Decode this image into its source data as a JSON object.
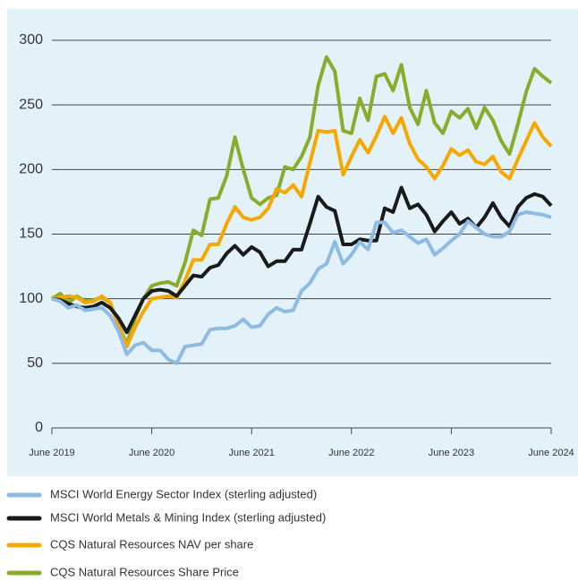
{
  "chart_data": {
    "type": "line",
    "categories": [
      "June 2019",
      null,
      null,
      null,
      null,
      null,
      null,
      null,
      null,
      null,
      null,
      null,
      "June 2020",
      null,
      null,
      null,
      null,
      null,
      null,
      null,
      null,
      null,
      null,
      null,
      "June 2021",
      null,
      null,
      null,
      null,
      null,
      null,
      null,
      null,
      null,
      null,
      null,
      "June 2022",
      null,
      null,
      null,
      null,
      null,
      null,
      null,
      null,
      null,
      null,
      null,
      "June 2023",
      null,
      null,
      null,
      null,
      null,
      null,
      null,
      null,
      null,
      null,
      null,
      "June 2024"
    ],
    "series": [
      {
        "name": "MSCI World Energy Sector Index (sterling adjusted)",
        "color": "#8dbbe3",
        "values": [
          100,
          98,
          93,
          95,
          91,
          92,
          93,
          87,
          75,
          57,
          64,
          66,
          60,
          60,
          53,
          50,
          63,
          64,
          65,
          76,
          77,
          77,
          79,
          84,
          78,
          79,
          88,
          93,
          90,
          91,
          106,
          112,
          123,
          127,
          144,
          127,
          134,
          144,
          138,
          159,
          159,
          151,
          153,
          148,
          143,
          146,
          134,
          139,
          145,
          150,
          160,
          155,
          150,
          148,
          148,
          152,
          165,
          167,
          166,
          165,
          163
        ]
      },
      {
        "name": "MSCI World Metals & Mining Index (sterling adjusted)",
        "color": "#1a1a1a",
        "values": [
          100,
          99,
          96,
          94,
          93,
          94,
          97,
          93,
          85,
          74,
          87,
          100,
          106,
          107,
          106,
          102,
          110,
          118,
          117,
          124,
          126,
          135,
          141,
          134,
          140,
          136,
          125,
          129,
          129,
          138,
          138,
          158,
          179,
          171,
          168,
          142,
          142,
          146,
          145,
          145,
          170,
          167,
          186,
          170,
          173,
          165,
          152,
          160,
          167,
          158,
          162,
          155,
          163,
          174,
          163,
          156,
          171,
          178,
          181,
          179,
          172
        ]
      },
      {
        "name": "CQS Natural Resources NAV per share",
        "color": "#f6a800",
        "values": [
          100,
          101,
          102,
          101,
          97,
          98,
          102,
          97,
          80,
          63,
          78,
          90,
          100,
          101,
          102,
          101,
          114,
          130,
          130,
          142,
          142,
          158,
          171,
          163,
          161,
          163,
          170,
          185,
          182,
          188,
          179,
          205,
          230,
          229,
          230,
          196,
          210,
          223,
          213,
          226,
          241,
          228,
          240,
          220,
          208,
          202,
          193,
          203,
          216,
          211,
          215,
          206,
          204,
          210,
          198,
          193,
          208,
          222,
          236,
          225,
          218
        ]
      },
      {
        "name": "CQS Natural Resources Share Price",
        "color": "#8aab2b",
        "values": [
          100,
          104,
          97,
          102,
          98,
          99,
          101,
          97,
          80,
          65,
          85,
          100,
          110,
          112,
          113,
          110,
          128,
          153,
          149,
          177,
          178,
          195,
          225,
          200,
          178,
          173,
          178,
          180,
          202,
          200,
          210,
          225,
          265,
          287,
          276,
          230,
          228,
          255,
          238,
          272,
          274,
          261,
          281,
          248,
          235,
          261,
          236,
          228,
          245,
          240,
          247,
          232,
          248,
          238,
          222,
          212,
          235,
          260,
          278,
          272,
          267
        ]
      }
    ],
    "ylim": [
      0,
      300
    ],
    "yticks": [
      0,
      50,
      100,
      150,
      200,
      250,
      300
    ],
    "grid": true
  }
}
